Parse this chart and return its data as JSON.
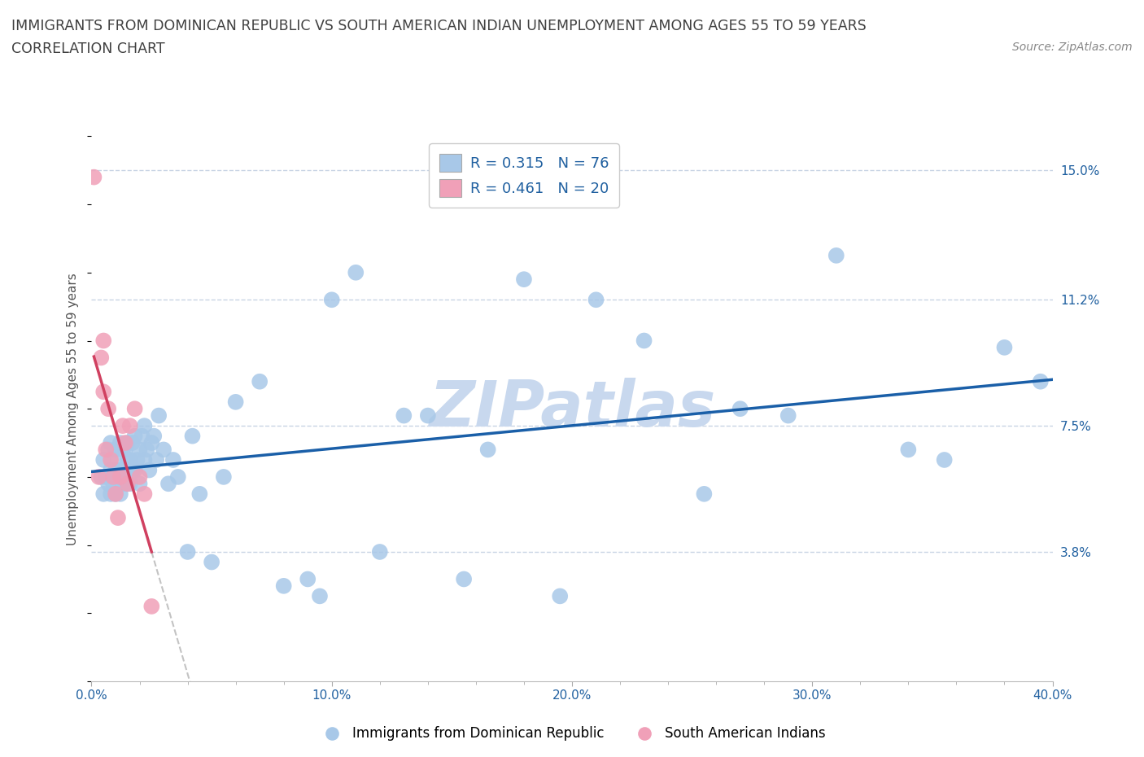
{
  "title_line1": "IMMIGRANTS FROM DOMINICAN REPUBLIC VS SOUTH AMERICAN INDIAN UNEMPLOYMENT AMONG AGES 55 TO 59 YEARS",
  "title_line2": "CORRELATION CHART",
  "source_text": "Source: ZipAtlas.com",
  "ylabel": "Unemployment Among Ages 55 to 59 years",
  "xlim": [
    0.0,
    0.4
  ],
  "ylim": [
    0.0,
    0.16
  ],
  "xtick_labels": [
    "0.0%",
    "",
    "",
    "",
    "10.0%",
    "",
    "",
    "",
    "",
    "20.0%",
    "",
    "",
    "",
    "",
    "30.0%",
    "",
    "",
    "",
    "",
    "40.0%"
  ],
  "xtick_vals": [
    0.0,
    0.02,
    0.04,
    0.06,
    0.1,
    0.12,
    0.14,
    0.16,
    0.18,
    0.2,
    0.22,
    0.24,
    0.26,
    0.28,
    0.3,
    0.32,
    0.34,
    0.36,
    0.38,
    0.4
  ],
  "xtick_display_vals": [
    0.0,
    0.1,
    0.2,
    0.3,
    0.4
  ],
  "xtick_display_labels": [
    "0.0%",
    "10.0%",
    "20.0%",
    "30.0%",
    "40.0%"
  ],
  "ytick_vals": [
    0.038,
    0.075,
    0.112,
    0.15
  ],
  "ytick_labels": [
    "3.8%",
    "7.5%",
    "11.2%",
    "15.0%"
  ],
  "R_blue": 0.315,
  "N_blue": 76,
  "R_pink": 0.461,
  "N_pink": 20,
  "color_blue": "#a8c8e8",
  "color_pink": "#f0a0b8",
  "color_trendline_blue": "#1a5fa8",
  "color_trendline_pink": "#d04060",
  "color_text_blue": "#2060a0",
  "color_title": "#404040",
  "watermark_color": "#c8d8ee",
  "legend_label_blue": "Immigrants from Dominican Republic",
  "legend_label_pink": "South American Indians",
  "background_color": "#ffffff",
  "grid_color": "#c8d4e4",
  "blue_x": [
    0.004,
    0.005,
    0.005,
    0.006,
    0.007,
    0.007,
    0.008,
    0.008,
    0.008,
    0.009,
    0.01,
    0.01,
    0.01,
    0.011,
    0.011,
    0.012,
    0.012,
    0.012,
    0.013,
    0.013,
    0.014,
    0.014,
    0.015,
    0.015,
    0.015,
    0.016,
    0.016,
    0.017,
    0.017,
    0.018,
    0.018,
    0.019,
    0.02,
    0.02,
    0.021,
    0.022,
    0.022,
    0.023,
    0.024,
    0.025,
    0.026,
    0.027,
    0.028,
    0.03,
    0.032,
    0.034,
    0.036,
    0.04,
    0.042,
    0.045,
    0.05,
    0.055,
    0.06,
    0.07,
    0.08,
    0.09,
    0.095,
    0.1,
    0.11,
    0.12,
    0.13,
    0.14,
    0.155,
    0.165,
    0.18,
    0.195,
    0.21,
    0.23,
    0.255,
    0.27,
    0.29,
    0.31,
    0.34,
    0.355,
    0.38,
    0.395
  ],
  "blue_y": [
    0.06,
    0.055,
    0.065,
    0.06,
    0.058,
    0.068,
    0.055,
    0.062,
    0.07,
    0.058,
    0.055,
    0.062,
    0.068,
    0.06,
    0.065,
    0.055,
    0.062,
    0.07,
    0.058,
    0.068,
    0.062,
    0.068,
    0.058,
    0.065,
    0.07,
    0.058,
    0.065,
    0.062,
    0.07,
    0.062,
    0.072,
    0.065,
    0.058,
    0.068,
    0.072,
    0.065,
    0.075,
    0.068,
    0.062,
    0.07,
    0.072,
    0.065,
    0.078,
    0.068,
    0.058,
    0.065,
    0.06,
    0.038,
    0.072,
    0.055,
    0.035,
    0.06,
    0.082,
    0.088,
    0.028,
    0.03,
    0.025,
    0.112,
    0.12,
    0.038,
    0.078,
    0.078,
    0.03,
    0.068,
    0.118,
    0.025,
    0.112,
    0.1,
    0.055,
    0.08,
    0.078,
    0.125,
    0.068,
    0.065,
    0.098,
    0.088
  ],
  "pink_x": [
    0.001,
    0.003,
    0.004,
    0.005,
    0.005,
    0.006,
    0.007,
    0.008,
    0.009,
    0.01,
    0.011,
    0.012,
    0.013,
    0.014,
    0.015,
    0.016,
    0.018,
    0.02,
    0.022,
    0.025
  ],
  "pink_y": [
    0.148,
    0.06,
    0.095,
    0.085,
    0.1,
    0.068,
    0.08,
    0.065,
    0.06,
    0.055,
    0.048,
    0.06,
    0.075,
    0.07,
    0.058,
    0.075,
    0.08,
    0.06,
    0.055,
    0.022
  ]
}
